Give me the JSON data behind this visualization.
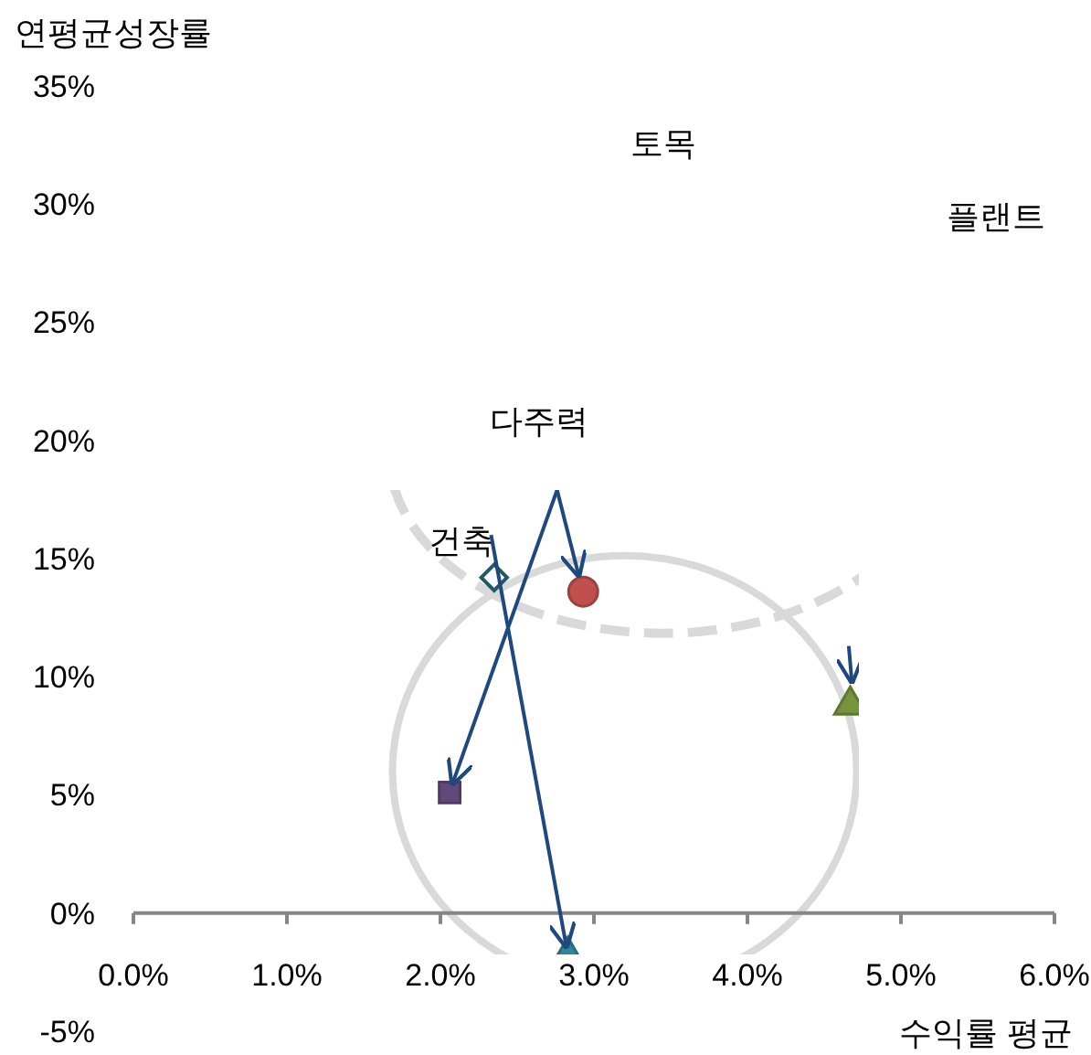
{
  "chart_data": {
    "type": "scatter",
    "xlabel": "수익률 평균",
    "ylabel": "연평균성장률",
    "xlim": [
      0,
      6
    ],
    "ylim": [
      -5,
      35
    ],
    "xticks": [
      {
        "value": 0,
        "label": "0.0%"
      },
      {
        "value": 1,
        "label": "1.0%"
      },
      {
        "value": 2,
        "label": "2.0%"
      },
      {
        "value": 3,
        "label": "3.0%"
      },
      {
        "value": 4,
        "label": "4.0%"
      },
      {
        "value": 5,
        "label": "5.0%"
      },
      {
        "value": 6,
        "label": "6.0%"
      }
    ],
    "yticks": [
      {
        "value": -5,
        "label": "-5%"
      },
      {
        "value": 0,
        "label": "0%"
      },
      {
        "value": 5,
        "label": "5%"
      },
      {
        "value": 10,
        "label": "10%"
      },
      {
        "value": 15,
        "label": "15%"
      },
      {
        "value": 20,
        "label": "20%"
      },
      {
        "value": 25,
        "label": "25%"
      },
      {
        "value": 30,
        "label": "30%"
      },
      {
        "value": 35,
        "label": "35%"
      }
    ],
    "series": [
      {
        "x": [
          2.35
        ],
        "values": [
          14.2
        ],
        "marker": "diamond",
        "color": "#215968"
      },
      {
        "x": [
          2.93
        ],
        "values": [
          13.6
        ],
        "marker": "circle",
        "color": "#c0504d"
      },
      {
        "x": [
          2.06
        ],
        "values": [
          5.1
        ],
        "marker": "square",
        "color": "#604a7b"
      },
      {
        "x": [
          2.83
        ],
        "values": [
          -1.8
        ],
        "marker": "triangle",
        "color": "#31849b"
      },
      {
        "x": [
          4.67
        ],
        "values": [
          8.8
        ],
        "marker": "triangle",
        "color": "#77933c"
      }
    ],
    "annotations": [
      "토목",
      "플랜트",
      "다주력",
      {
        "text": "건축",
        "x": 2.35,
        "y": 14.2
      }
    ]
  }
}
